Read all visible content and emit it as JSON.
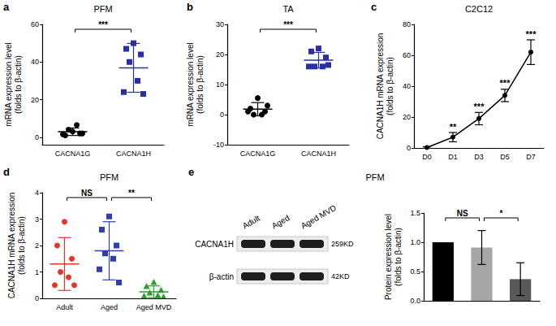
{
  "chart_data": [
    {
      "type": "scatter",
      "panel_label": "a",
      "title": "PFM",
      "ylabel": "mRNA expression level\n(folds to β-actin)",
      "categories": [
        "CACNA1G",
        "CACNA1H"
      ],
      "values": [
        [
          3,
          1,
          2,
          4,
          6.5,
          1.5,
          2
        ],
        [
          50,
          47,
          44,
          40,
          30,
          24,
          23
        ]
      ],
      "means": [
        2.9,
        36.9
      ],
      "sd": [
        2,
        13
      ],
      "colors": [
        "#000000",
        "#2b2fa6"
      ],
      "marker": [
        "circle",
        "square"
      ],
      "ylim": [
        -4,
        60
      ],
      "yticks": [
        0,
        20,
        40,
        60
      ],
      "grid": false,
      "annotations": [
        {
          "from": "CACNA1G",
          "to": "CACNA1H",
          "text": "***"
        }
      ]
    },
    {
      "type": "scatter",
      "panel_label": "b",
      "title": "TA",
      "ylabel": "mRNA expression level\n(folds to β-actin)",
      "categories": [
        "CACNA1G",
        "CACNA1H"
      ],
      "values": [
        [
          5.5,
          2,
          1,
          0,
          0,
          1,
          3
        ],
        [
          22,
          21,
          19,
          16,
          16,
          16,
          16.5
        ]
      ],
      "means": [
        1.8,
        18.1
      ],
      "sd": [
        2.2,
        2.6
      ],
      "colors": [
        "#000000",
        "#2b2fa6"
      ],
      "marker": [
        "circle",
        "square"
      ],
      "ylim": [
        -10,
        30
      ],
      "yticks": [
        -10,
        0,
        10,
        20,
        30
      ],
      "grid": false,
      "annotations": [
        {
          "from": "CACNA1G",
          "to": "CACNA1H",
          "text": "***"
        }
      ]
    },
    {
      "type": "line",
      "panel_label": "c",
      "title": "C2C12",
      "ylabel": "CACNA1H mRNA expression\n(folds to β-actin)",
      "categories": [
        "D0",
        "D1",
        "D3",
        "D5",
        "D7"
      ],
      "values": [
        0.3,
        7,
        19,
        34,
        62
      ],
      "sd": [
        0.5,
        3,
        4,
        4,
        8
      ],
      "color": "#000000",
      "marker": "circle",
      "ylim": [
        0,
        80
      ],
      "yticks": [
        0,
        20,
        40,
        60,
        80
      ],
      "grid": false,
      "annotations": [
        {
          "category": "D1",
          "text": "**"
        },
        {
          "category": "D3",
          "text": "***"
        },
        {
          "category": "D5",
          "text": "***"
        },
        {
          "category": "D7",
          "text": "***"
        }
      ]
    },
    {
      "type": "scatter",
      "panel_label": "d",
      "title": "PFM",
      "ylabel": "CACNA1H mRNA expression\n(folds to β-actin)",
      "categories": [
        "Adult",
        "Aged",
        "Aged MVD"
      ],
      "values": [
        [
          2.9,
          2.0,
          1.5,
          1.0,
          0.8,
          0.5,
          0.5
        ],
        [
          3.1,
          2.6,
          2.0,
          1.7,
          1.5,
          1.1,
          0.6
        ],
        [
          0.6,
          0.45,
          0.3,
          0.2,
          0.1,
          0.08,
          0.05
        ]
      ],
      "means": [
        1.3,
        1.8,
        0.25
      ],
      "sd": [
        1.0,
        1.1,
        0.22
      ],
      "colors": [
        "#e8322a",
        "#2f3fb0",
        "#2ca02c"
      ],
      "marker": [
        "circle",
        "square",
        "triangle"
      ],
      "ylim": [
        0,
        4
      ],
      "yticks": [
        0,
        1,
        2,
        3,
        4
      ],
      "grid": false,
      "annotations": [
        {
          "from": "Adult",
          "to": "Aged",
          "text": "NS"
        },
        {
          "from": "Aged",
          "to": "Aged MVD",
          "text": "**"
        }
      ]
    },
    {
      "type": "bar",
      "panel_label": "e",
      "title": "PFM",
      "ylabel": "Protein expression level\n(folds to β-actin)",
      "categories": [
        "Adult",
        "Aged",
        "Aged MVD"
      ],
      "values": [
        1,
        0.91,
        0.37
      ],
      "sd": [
        0,
        0.29,
        0.28
      ],
      "colors": [
        "#000000",
        "#a6a6a6",
        "#595959"
      ],
      "ylim": [
        0,
        1.5
      ],
      "yticks": [
        {
          "value": 0,
          "label": "0.0"
        },
        0.5,
        {
          "value": 1,
          "label": "1.0"
        },
        1.5
      ],
      "grid": false,
      "tick_labels": "y",
      "annotations": [
        {
          "from": "Adult",
          "to": "Aged",
          "text": "NS"
        },
        {
          "from": "Aged",
          "to": "Aged MVD",
          "text": "*"
        }
      ]
    }
  ],
  "blot": {
    "lanes": [
      "Adult",
      "Aged",
      "Aged MVD"
    ],
    "rows": [
      {
        "name": "CACNA1H",
        "size": "259KD"
      },
      {
        "name": "β-actin",
        "size": "42KD"
      }
    ]
  }
}
